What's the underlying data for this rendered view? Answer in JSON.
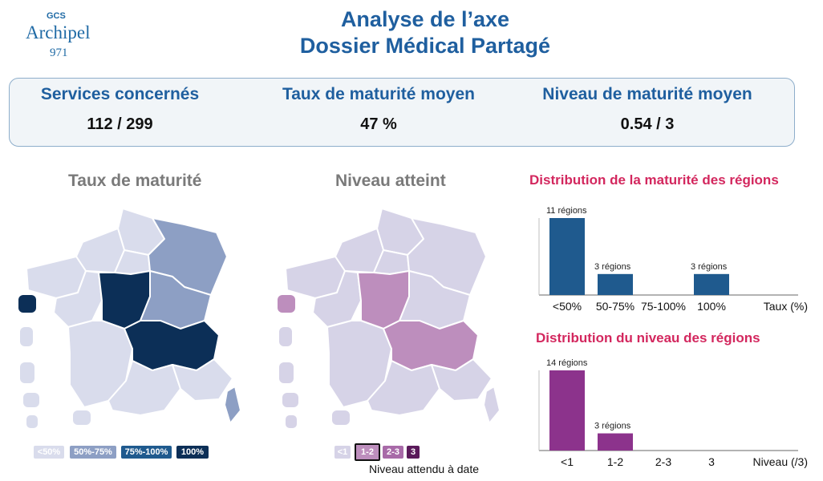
{
  "logo": {
    "top": "GCS",
    "name": "Archipel",
    "number": "971"
  },
  "title": {
    "line1": "Analyse de l’axe",
    "line2": "Dossier Médical Partagé"
  },
  "kpis": [
    {
      "label": "Services concernés",
      "value": "112 / 299"
    },
    {
      "label": "Taux de maturité moyen",
      "value": "47 %"
    },
    {
      "label": "Niveau de maturité moyen",
      "value": "0.54 / 3"
    }
  ],
  "maps": {
    "left": {
      "title": "Taux de maturité",
      "legend": [
        "<50%",
        "50%-75%",
        "75%-100%",
        "100%"
      ]
    },
    "right": {
      "title": "Niveau atteint",
      "legend": [
        "<1",
        "1-2",
        "2-3",
        "3"
      ],
      "note": "Niveau attendu à date"
    }
  },
  "colors": {
    "blue": "#1f5a8e",
    "purple": "#8c338c",
    "accent": "#d3275e"
  },
  "chart_data": [
    {
      "type": "bar",
      "title": "Distribution de la maturité des régions",
      "categories": [
        "<50%",
        "50-75%",
        "75-100%",
        "100%"
      ],
      "values": [
        11,
        3,
        0,
        3
      ],
      "data_labels": [
        "11 régions",
        "3 régions",
        "",
        "3 régions"
      ],
      "xlabel": "Taux (%)",
      "ylim": [
        0,
        11
      ]
    },
    {
      "type": "bar",
      "title": "Distribution du niveau des régions",
      "categories": [
        "<1",
        "1-2",
        "2-3",
        "3"
      ],
      "values": [
        14,
        3,
        0,
        0
      ],
      "data_labels": [
        "14 régions",
        "3 régions",
        "",
        ""
      ],
      "xlabel": "Niveau (/3)",
      "ylim": [
        0,
        14
      ]
    }
  ]
}
